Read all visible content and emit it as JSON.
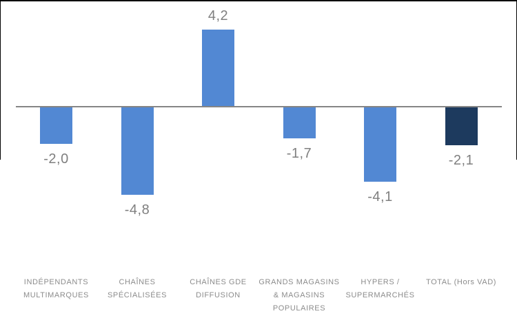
{
  "chart_data": {
    "type": "bar",
    "title": "",
    "xlabel": "",
    "ylabel": "",
    "grid": false,
    "legend": false,
    "ylim": [
      -5.5,
      5.0
    ],
    "categories": [
      "INDÉPENDANTS MULTIMARQUES",
      "CHAÎNES SPÉCIALISÉES",
      "CHAÎNES GDE DIFFUSION",
      "GRANDS MAGASINS & MAGASINS POPULAIRES",
      "HYPERS / SUPERMARCHÉS",
      "TOTAL (Hors VAD)"
    ],
    "category_lines": [
      [
        "INDÉPENDANTS",
        "MULTIMARQUES"
      ],
      [
        "CHAÎNES",
        "SPÉCIALISÉES"
      ],
      [
        "CHAÎNES GDE",
        "DIFFUSION"
      ],
      [
        "GRANDS MAGASINS",
        "& MAGASINS",
        "POPULAIRES"
      ],
      [
        "HYPERS /",
        "SUPERMARCHÉS"
      ],
      [
        "TOTAL (Hors VAD)"
      ]
    ],
    "values": [
      -2.0,
      -4.8,
      4.2,
      -1.7,
      -4.1,
      -2.1
    ],
    "value_labels": [
      "-2,0",
      "-4,8",
      "4,2",
      "-1,7",
      "-4,1",
      "-2,1"
    ],
    "bar_colors": [
      "#5288d3",
      "#5288d3",
      "#5288d3",
      "#5288d3",
      "#5288d3",
      "#1d3a5e"
    ],
    "colors": {
      "bar_default": "#5288d3",
      "bar_total": "#1d3a5e",
      "axis_line": "#858585",
      "value_label": "#7f7f7f",
      "category_label": "#8c8c8c",
      "background": "#ffffff",
      "border": "#000000"
    }
  }
}
